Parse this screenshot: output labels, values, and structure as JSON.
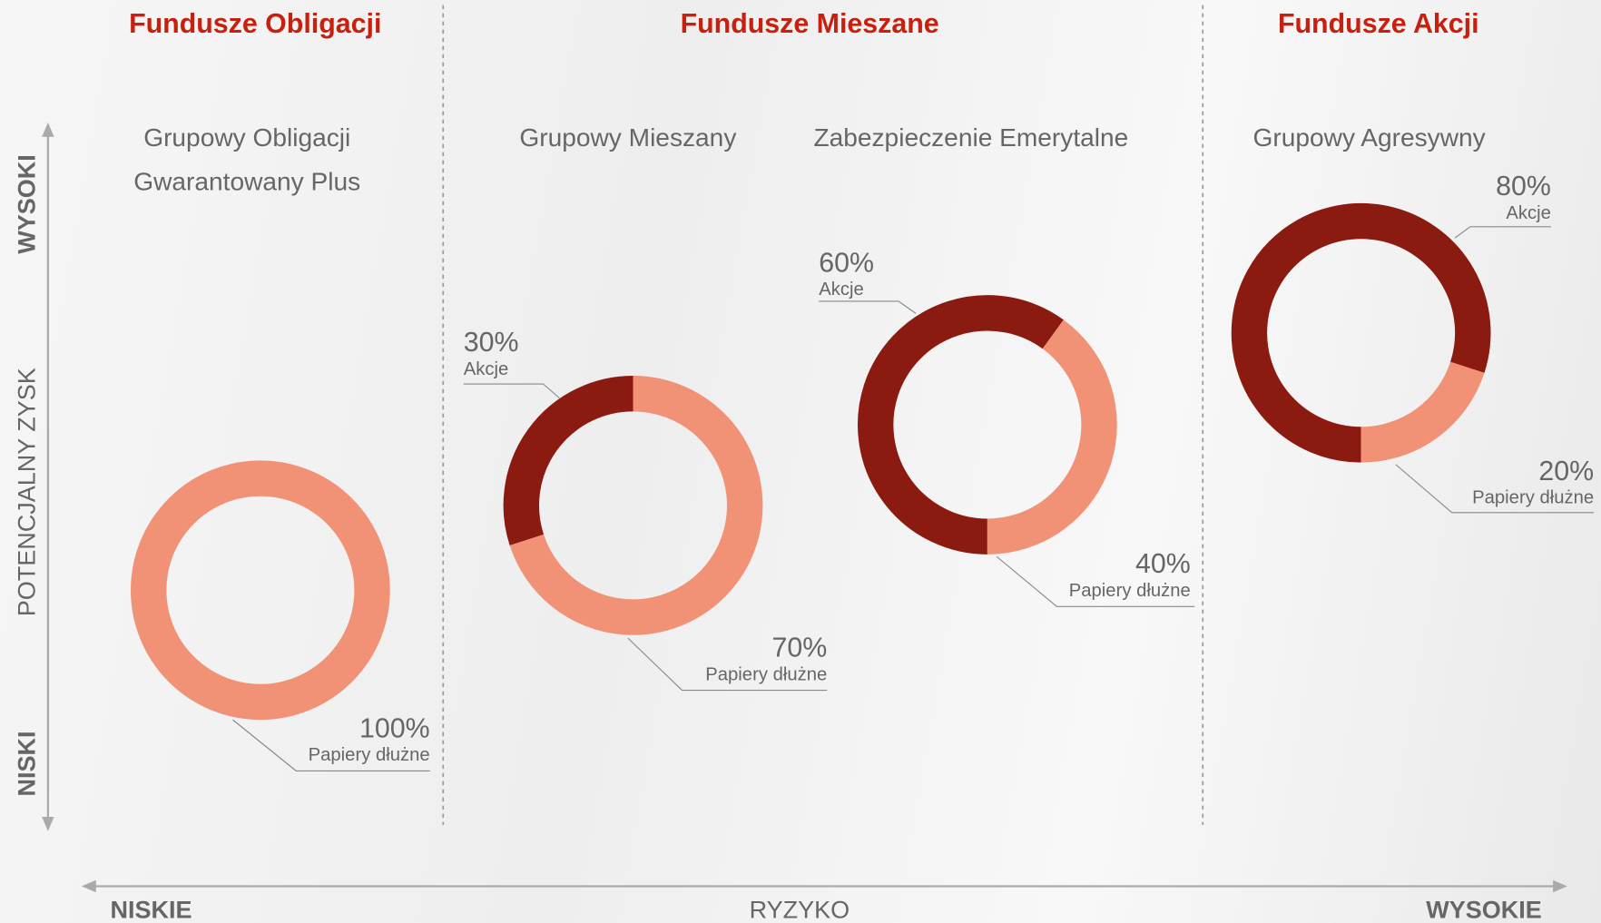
{
  "headers": [
    "Fundusze Obligacji",
    "Fundusze Mieszane",
    "Fundusze Akcji"
  ],
  "axes": {
    "y_high": "WYSOKI",
    "y_label": "POTENCJALNY ZYSK",
    "y_low": "NISKI",
    "x_low": "NISKIE",
    "x_label": "RYZYKO",
    "x_high": "WYSOKIE"
  },
  "chart_data": [
    {
      "type": "donut",
      "title": [
        "Grupowy Obligacji",
        "Gwarantowany Plus"
      ],
      "categories": [
        "Papiery dłużne"
      ],
      "values": [
        100
      ],
      "value_labels": [
        "100%"
      ],
      "colors": [
        "#f19276"
      ]
    },
    {
      "type": "donut",
      "title": [
        "Grupowy Mieszany"
      ],
      "categories": [
        "Akcje",
        "Papiery dłużne"
      ],
      "values": [
        30,
        70
      ],
      "value_labels": [
        "30%",
        "70%"
      ],
      "colors": [
        "#8b1a10",
        "#f19276"
      ]
    },
    {
      "type": "donut",
      "title": [
        "Zabezpieczenie Emerytalne"
      ],
      "categories": [
        "Akcje",
        "Papiery dłużne"
      ],
      "values": [
        60,
        40
      ],
      "value_labels": [
        "60%",
        "40%"
      ],
      "colors": [
        "#8b1a10",
        "#f19276"
      ]
    },
    {
      "type": "donut",
      "title": [
        "Grupowy Agresywny"
      ],
      "categories": [
        "Akcje",
        "Papiery dłużne"
      ],
      "values": [
        80,
        20
      ],
      "value_labels": [
        "80%",
        "20%"
      ],
      "colors": [
        "#8b1a10",
        "#f19276"
      ]
    }
  ]
}
